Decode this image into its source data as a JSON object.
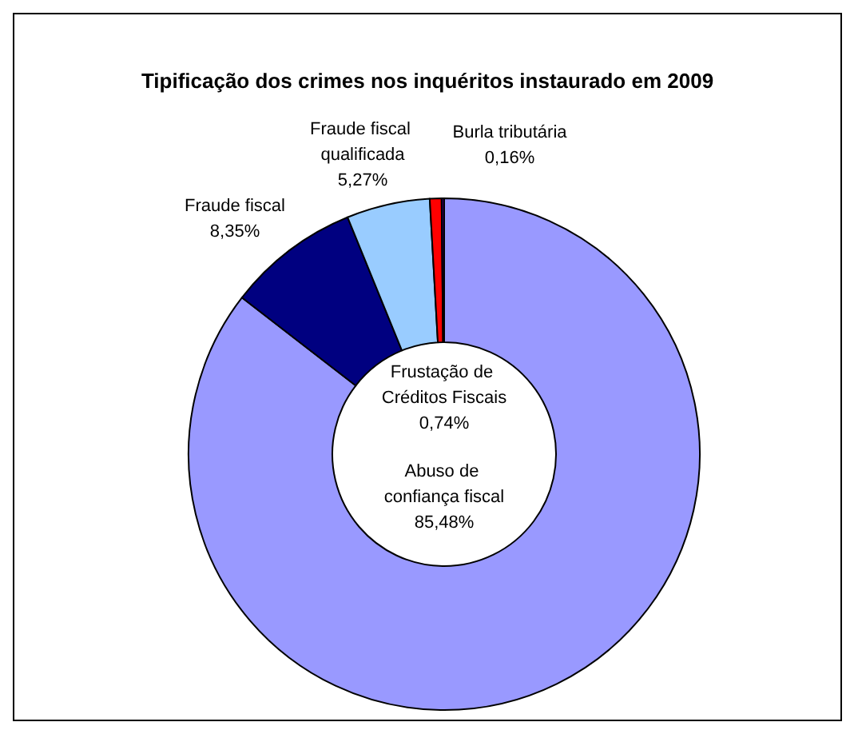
{
  "chart_data": {
    "type": "donut",
    "title": "Tipificação dos crimes nos inquéritos instaurado em 2009",
    "categories": [
      "Abuso de confiança fiscal",
      "Fraude fiscal",
      "Fraude fiscal qualificada",
      "Frustação de Créditos Fiscais",
      "Burla tributária"
    ],
    "values": [
      85.48,
      8.35,
      5.27,
      0.74,
      0.16
    ],
    "value_labels": [
      "85,48%",
      "8,35%",
      "5,27%",
      "0,74%",
      "0,16%"
    ],
    "colors": [
      "#9999ff",
      "#000080",
      "#99ccff",
      "#ff0000",
      "#330066"
    ],
    "legend": false
  }
}
